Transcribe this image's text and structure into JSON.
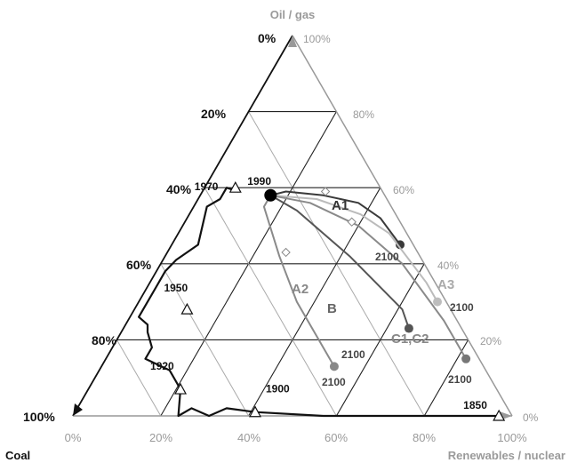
{
  "chart_data": {
    "type": "ternary",
    "axes": {
      "top": "Oil / gas",
      "left": "Coal",
      "right": "Renewables / nuclear"
    },
    "left_ticks": [
      "0%",
      "20%",
      "40%",
      "60%",
      "80%",
      "100%"
    ],
    "right_ticks": [
      "100%",
      "80%",
      "60%",
      "40%",
      "20%",
      "0%"
    ],
    "bottom_ticks": [
      "0%",
      "20%",
      "40%",
      "60%",
      "80%",
      "100%"
    ],
    "grid": true,
    "history": {
      "name": "",
      "points": [
        {
          "coal": 0.03,
          "oil_gas": 0.0,
          "renew": 0.97
        },
        {
          "coal": 0.03,
          "oil_gas": 0.0,
          "renew": 0.97
        },
        {
          "coal": 0.43,
          "oil_gas": 0.0,
          "renew": 0.57
        },
        {
          "coal": 0.58,
          "oil_gas": 0.01,
          "renew": 0.41
        },
        {
          "coal": 0.64,
          "oil_gas": 0.02,
          "renew": 0.34
        },
        {
          "coal": 0.69,
          "oil_gas": 0.0,
          "renew": 0.31
        },
        {
          "coal": 0.72,
          "oil_gas": 0.02,
          "renew": 0.26
        },
        {
          "coal": 0.76,
          "oil_gas": 0.0,
          "renew": 0.24
        },
        {
          "coal": 0.72,
          "oil_gas": 0.07,
          "renew": 0.21
        },
        {
          "coal": 0.72,
          "oil_gas": 0.12,
          "renew": 0.16
        },
        {
          "coal": 0.76,
          "oil_gas": 0.15,
          "renew": 0.09
        },
        {
          "coal": 0.73,
          "oil_gas": 0.18,
          "renew": 0.09
        },
        {
          "coal": 0.72,
          "oil_gas": 0.22,
          "renew": 0.06
        },
        {
          "coal": 0.71,
          "oil_gas": 0.24,
          "renew": 0.05
        },
        {
          "coal": 0.72,
          "oil_gas": 0.26,
          "renew": 0.02
        },
        {
          "coal": 0.64,
          "oil_gas": 0.34,
          "renew": 0.02
        },
        {
          "coal": 0.6,
          "oil_gas": 0.38,
          "renew": 0.02
        },
        {
          "coal": 0.56,
          "oil_gas": 0.41,
          "renew": 0.03
        },
        {
          "coal": 0.49,
          "oil_gas": 0.45,
          "renew": 0.06
        },
        {
          "coal": 0.42,
          "oil_gas": 0.55,
          "renew": 0.03
        },
        {
          "coal": 0.38,
          "oil_gas": 0.57,
          "renew": 0.05
        },
        {
          "coal": 0.35,
          "oil_gas": 0.6,
          "renew": 0.05
        },
        {
          "coal": 0.33,
          "oil_gas": 0.59,
          "renew": 0.08
        },
        {
          "coal": 0.33,
          "oil_gas": 0.6,
          "renew": 0.07
        }
      ],
      "markers": [
        {
          "year": "1850",
          "coal": 0.03,
          "oil_gas": 0.0,
          "renew": 0.97
        },
        {
          "year": "1900",
          "coal": 0.58,
          "oil_gas": 0.01,
          "renew": 0.41
        },
        {
          "year": "1920",
          "coal": 0.72,
          "oil_gas": 0.07,
          "renew": 0.21
        },
        {
          "year": "1950",
          "coal": 0.6,
          "oil_gas": 0.28,
          "renew": 0.12
        },
        {
          "year": "1970",
          "coal": 0.33,
          "oil_gas": 0.6,
          "renew": 0.07
        },
        {
          "year": "1990",
          "coal": 0.26,
          "oil_gas": 0.58,
          "renew": 0.16
        }
      ]
    },
    "series": [
      {
        "name": "A1",
        "color": "#3a3a3a",
        "points": [
          {
            "coal": 0.26,
            "oil_gas": 0.58,
            "renew": 0.16
          },
          {
            "coal": 0.22,
            "oil_gas": 0.59,
            "renew": 0.19
          },
          {
            "coal": 0.14,
            "oil_gas": 0.58,
            "renew": 0.28
          },
          {
            "coal": 0.07,
            "oil_gas": 0.56,
            "renew": 0.37
          },
          {
            "coal": 0.04,
            "oil_gas": 0.52,
            "renew": 0.44
          },
          {
            "coal": 0.03,
            "oil_gas": 0.45,
            "renew": 0.52
          },
          {
            "coal": 0.03,
            "oil_gas": 0.45,
            "renew": 0.52
          }
        ],
        "end_label": "2100",
        "mid_markers": [
          {
            "coal": 0.13,
            "oil_gas": 0.59,
            "renew": 0.28
          }
        ]
      },
      {
        "name": "A3",
        "color": "#bbbbbb",
        "points": [
          {
            "coal": 0.26,
            "oil_gas": 0.58,
            "renew": 0.16
          },
          {
            "coal": 0.16,
            "oil_gas": 0.57,
            "renew": 0.27
          },
          {
            "coal": 0.08,
            "oil_gas": 0.53,
            "renew": 0.39
          },
          {
            "coal": 0.04,
            "oil_gas": 0.48,
            "renew": 0.48
          },
          {
            "coal": 0.02,
            "oil_gas": 0.35,
            "renew": 0.63
          },
          {
            "coal": 0.02,
            "oil_gas": 0.3,
            "renew": 0.68
          }
        ],
        "end_label": "2100",
        "mid_markers": []
      },
      {
        "name": "C1,C2",
        "color": "#8a8a8a",
        "points": [
          {
            "coal": 0.26,
            "oil_gas": 0.58,
            "renew": 0.16
          },
          {
            "coal": 0.18,
            "oil_gas": 0.56,
            "renew": 0.26
          },
          {
            "coal": 0.1,
            "oil_gas": 0.5,
            "renew": 0.4
          },
          {
            "coal": 0.05,
            "oil_gas": 0.4,
            "renew": 0.55
          },
          {
            "coal": 0.03,
            "oil_gas": 0.25,
            "renew": 0.72
          },
          {
            "coal": 0.03,
            "oil_gas": 0.15,
            "renew": 0.82
          },
          {
            "coal": 0.03,
            "oil_gas": 0.15,
            "renew": 0.82
          }
        ],
        "end_label": "2100",
        "mid_markers": [
          {
            "coal": 0.11,
            "oil_gas": 0.51,
            "renew": 0.38
          }
        ]
      },
      {
        "name": "B",
        "color": "#555555",
        "points": [
          {
            "coal": 0.26,
            "oil_gas": 0.58,
            "renew": 0.16
          },
          {
            "coal": 0.22,
            "oil_gas": 0.54,
            "renew": 0.24
          },
          {
            "coal": 0.16,
            "oil_gas": 0.42,
            "renew": 0.42
          },
          {
            "coal": 0.11,
            "oil_gas": 0.28,
            "renew": 0.61
          },
          {
            "coal": 0.12,
            "oil_gas": 0.23,
            "renew": 0.65
          },
          {
            "coal": 0.12,
            "oil_gas": 0.23,
            "renew": 0.65
          }
        ],
        "end_label": "2100",
        "mid_markers": []
      },
      {
        "name": "A2",
        "color": "#8a8a8a",
        "points": [
          {
            "coal": 0.26,
            "oil_gas": 0.58,
            "renew": 0.16
          },
          {
            "coal": 0.29,
            "oil_gas": 0.55,
            "renew": 0.16
          },
          {
            "coal": 0.32,
            "oil_gas": 0.42,
            "renew": 0.26
          },
          {
            "coal": 0.34,
            "oil_gas": 0.3,
            "renew": 0.36
          },
          {
            "coal": 0.34,
            "oil_gas": 0.13,
            "renew": 0.53
          },
          {
            "coal": 0.34,
            "oil_gas": 0.13,
            "renew": 0.53
          }
        ],
        "end_label": "2100",
        "mid_markers": [
          {
            "coal": 0.3,
            "oil_gas": 0.43,
            "renew": 0.27
          }
        ]
      }
    ]
  }
}
